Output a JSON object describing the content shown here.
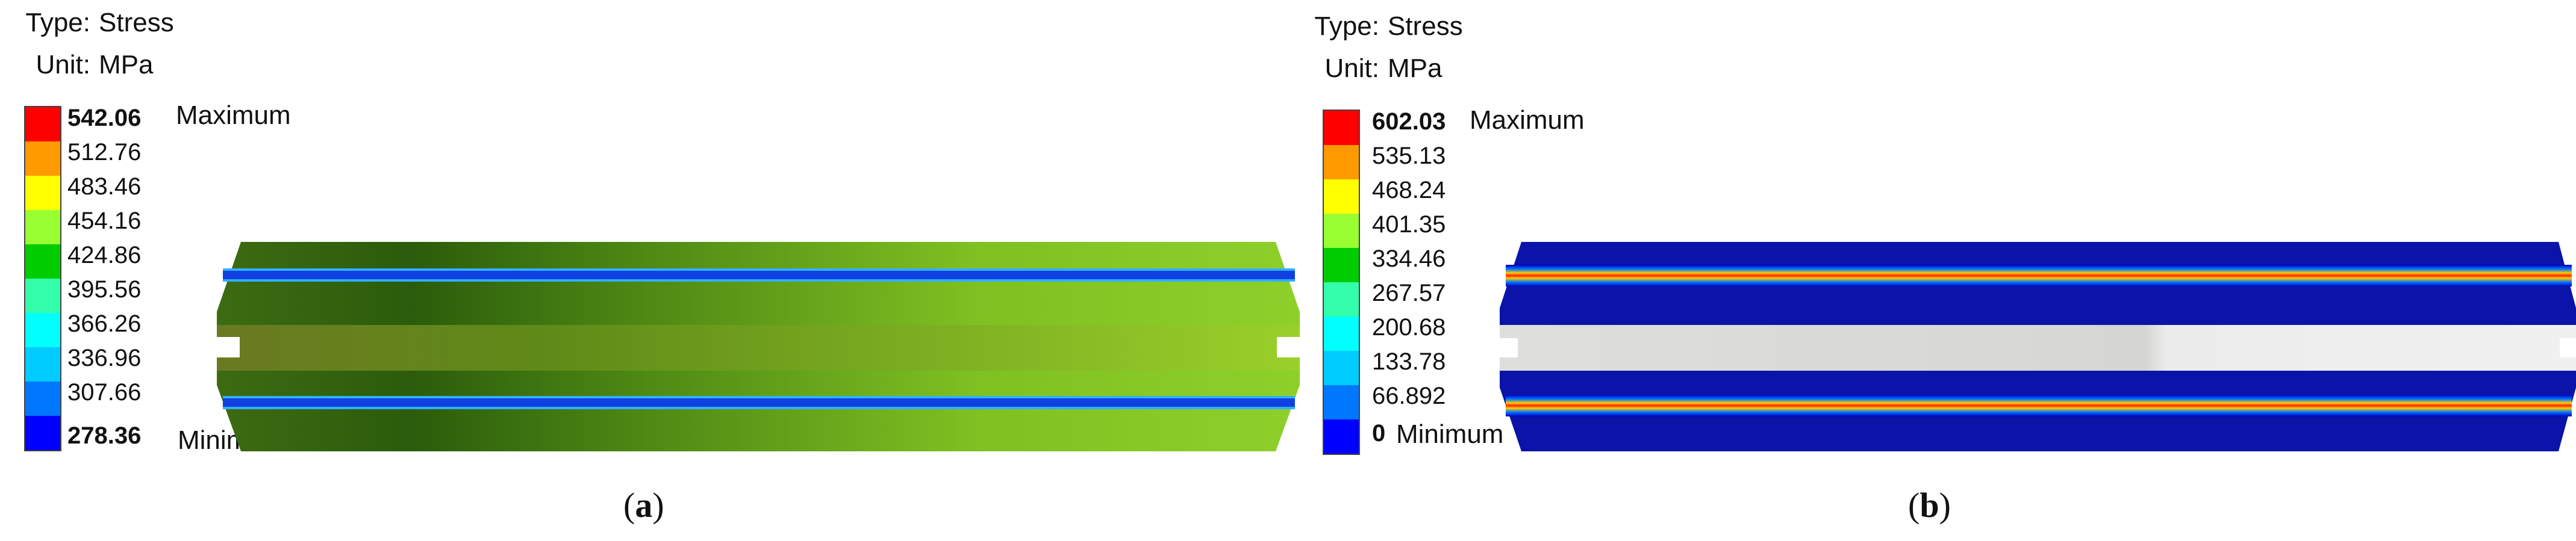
{
  "panels": [
    {
      "type_key": "Type:",
      "type_value": "Stress",
      "unit_key": "Unit:",
      "unit_value": "MPa",
      "legend": [
        "542.06",
        "512.76",
        "483.46",
        "454.16",
        "424.86",
        "395.56",
        "366.26",
        "336.96",
        "307.66",
        "278.36"
      ],
      "max_label": "Maximum",
      "min_label": "Minimum",
      "caption_open": "(",
      "caption_letter": "a",
      "caption_close": ")"
    },
    {
      "type_key": "Type:",
      "type_value": "Stress",
      "unit_key": "Unit:",
      "unit_value": "MPa",
      "legend": [
        "602.03",
        "535.13",
        "468.24",
        "401.35",
        "334.46",
        "267.57",
        "200.68",
        "133.78",
        "66.892",
        "0"
      ],
      "max_label": "Maximum",
      "min_label": "Minimum",
      "caption_open": "(",
      "caption_letter": "b",
      "caption_close": ")"
    }
  ],
  "colors": {
    "scale": [
      "#ff0000",
      "#ff9900",
      "#ffff00",
      "#99ff33",
      "#00cc00",
      "#33ffaa",
      "#00ffff",
      "#00ccff",
      "#0077ff",
      "#0000ff"
    ]
  }
}
